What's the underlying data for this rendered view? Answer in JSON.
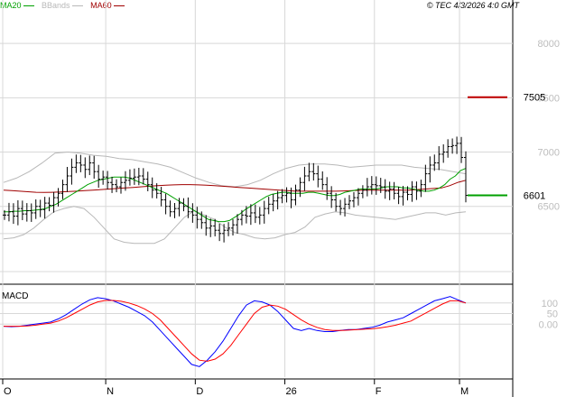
{
  "header": {
    "legend": [
      {
        "label": "MA20",
        "color": "#00a000"
      },
      {
        "label": "BBands",
        "color": "#b8b8b8"
      },
      {
        "label": "MA60",
        "color": "#a00000"
      }
    ],
    "timestamp": "© TEC 4/3/2026 4:0 GMT"
  },
  "colors": {
    "price": "#000000",
    "ma20": "#00a000",
    "bbands": "#b8b8b8",
    "ma60": "#a00000",
    "macd": "#0000ff",
    "signal": "#ff0000",
    "grid": "#d8d8d8",
    "axis_text": "#bdbdbd",
    "resistance": "#c00000",
    "support": "#00a000"
  },
  "chart_data": [
    {
      "type": "ohlc",
      "panel": "price",
      "ylim": [
        5800,
        8300
      ],
      "y_ticks": [
        6500,
        7000,
        7500,
        8000
      ],
      "y_tick_labels": [
        "6500",
        "7000",
        "7500",
        "8000"
      ],
      "x_ticks": [
        {
          "label": "O",
          "index": 0
        },
        {
          "label": "N",
          "index": 23
        },
        {
          "label": "D",
          "index": 43
        },
        {
          "label": "26",
          "index": 63
        },
        {
          "label": "F",
          "index": 83
        },
        {
          "label": "M",
          "index": 102
        }
      ],
      "close": [
        6420,
        6450,
        6410,
        6480,
        6430,
        6460,
        6440,
        6500,
        6470,
        6530,
        6510,
        6580,
        6620,
        6700,
        6780,
        6860,
        6900,
        6880,
        6840,
        6900,
        6820,
        6750,
        6770,
        6720,
        6700,
        6680,
        6720,
        6740,
        6760,
        6770,
        6780,
        6750,
        6700,
        6650,
        6620,
        6560,
        6500,
        6450,
        6480,
        6530,
        6500,
        6450,
        6420,
        6380,
        6350,
        6300,
        6320,
        6280,
        6250,
        6280,
        6300,
        6330,
        6380,
        6420,
        6410,
        6440,
        6400,
        6420,
        6480,
        6520,
        6550,
        6580,
        6600,
        6620,
        6560,
        6650,
        6720,
        6780,
        6820,
        6800,
        6750,
        6700,
        6620,
        6560,
        6500,
        6480,
        6520,
        6550,
        6580,
        6620,
        6650,
        6680,
        6700,
        6690,
        6680,
        6640,
        6660,
        6620,
        6590,
        6630,
        6610,
        6680,
        6640,
        6700,
        6800,
        6880,
        6900,
        6980,
        7000,
        7050,
        7060,
        7080,
        6950,
        6601
      ],
      "high_low_range": 90,
      "ma20": [
        6450,
        6450,
        6455,
        6455,
        6460,
        6460,
        6465,
        6470,
        6480,
        6500,
        6520,
        6550,
        6580,
        6610,
        6640,
        6670,
        6700,
        6720,
        6740,
        6750,
        6760,
        6770,
        6770,
        6770,
        6760,
        6740,
        6720,
        6700,
        6680,
        6660,
        6640,
        6620,
        6590,
        6560,
        6530,
        6500,
        6470,
        6440,
        6410,
        6380,
        6370,
        6360,
        6360,
        6370,
        6400,
        6430,
        6470,
        6500,
        6530,
        6560,
        6590,
        6610,
        6620,
        6630,
        6630,
        6620,
        6620,
        6620,
        6630,
        6630,
        6620,
        6610,
        6600,
        6600,
        6610,
        6630,
        6640,
        6650,
        6660,
        6660,
        6660,
        6660,
        6670,
        6680,
        6680,
        6680,
        6670,
        6670,
        6660,
        6650,
        6640,
        6640,
        6650,
        6670,
        6700,
        6750,
        6780,
        6830,
        6850
      ],
      "ma60": [
        6650,
        6645,
        6640,
        6635,
        6630,
        6628,
        6630,
        6632,
        6636,
        6640,
        6645,
        6650,
        6655,
        6660,
        6665,
        6670,
        6675,
        6680,
        6685,
        6690,
        6695,
        6698,
        6700,
        6700,
        6698,
        6695,
        6690,
        6685,
        6680,
        6675,
        6670,
        6665,
        6660,
        6655,
        6650,
        6645,
        6640,
        6640,
        6640,
        6640,
        6640,
        6640,
        6642,
        6645,
        6648,
        6650,
        6650,
        6650,
        6650,
        6650,
        6650,
        6655,
        6660,
        6665,
        6670,
        6690,
        6720,
        6740
      ],
      "bb_upper": [
        6720,
        6760,
        6820,
        6900,
        6990,
        7000,
        6990,
        6970,
        6960,
        6940,
        6930,
        6910,
        6890,
        6860,
        6810,
        6760,
        6720,
        6690,
        6680,
        6700,
        6740,
        6800,
        6850,
        6880,
        6890,
        6890,
        6880,
        6860,
        6870,
        6880,
        6880,
        6880,
        6860,
        6850,
        6840,
        6820,
        6800
      ],
      "bb_lower": [
        6200,
        6210,
        6240,
        6300,
        6380,
        6450,
        6480,
        6500,
        6480,
        6400,
        6300,
        6200,
        6170,
        6160,
        6160,
        6160,
        6200,
        6300,
        6400,
        6460,
        6420,
        6380,
        6310,
        6260,
        6240,
        6210,
        6200,
        6210,
        6240,
        6260,
        6310,
        6400,
        6430,
        6450,
        6440,
        6420,
        6410,
        6400,
        6390,
        6380,
        6400,
        6420,
        6440,
        6440,
        6420,
        6440,
        6450
      ],
      "annotations": [
        {
          "label": "7505",
          "value": 7505,
          "color": "#c00000",
          "kind": "resistance"
        },
        {
          "label": "6601",
          "value": 6601,
          "color": "#00a000",
          "kind": "support"
        }
      ]
    },
    {
      "type": "line",
      "panel": "macd",
      "title": "MACD",
      "ylim": [
        -250,
        180
      ],
      "y_ticks": [
        100,
        50,
        0
      ],
      "y_tick_labels": [
        "100",
        "50",
        "0.00"
      ],
      "series": [
        {
          "name": "MACD",
          "color": "#0000ff",
          "values": [
            -10,
            -12,
            -10,
            -5,
            0,
            5,
            10,
            25,
            45,
            70,
            95,
            115,
            125,
            120,
            110,
            95,
            80,
            60,
            40,
            10,
            -30,
            -70,
            -110,
            -150,
            -190,
            -200,
            -170,
            -130,
            -80,
            -20,
            40,
            90,
            110,
            105,
            90,
            60,
            20,
            -20,
            -30,
            -20,
            -30,
            -35,
            -35,
            -30,
            -25,
            -25,
            -20,
            -15,
            -5,
            10,
            20,
            30,
            50,
            70,
            90,
            110,
            120,
            130,
            115,
            100
          ]
        },
        {
          "name": "Signal",
          "color": "#ff0000",
          "values": [
            -10,
            -10,
            -10,
            -8,
            -5,
            0,
            5,
            15,
            30,
            50,
            70,
            90,
            105,
            112,
            112,
            108,
            100,
            88,
            72,
            50,
            20,
            -20,
            -60,
            -100,
            -140,
            -170,
            -175,
            -165,
            -140,
            -100,
            -50,
            0,
            50,
            80,
            90,
            85,
            70,
            45,
            20,
            0,
            -15,
            -25,
            -30,
            -30,
            -28,
            -26,
            -24,
            -22,
            -18,
            -12,
            -5,
            5,
            15,
            35,
            55,
            75,
            95,
            110,
            110,
            100
          ]
        }
      ]
    }
  ]
}
